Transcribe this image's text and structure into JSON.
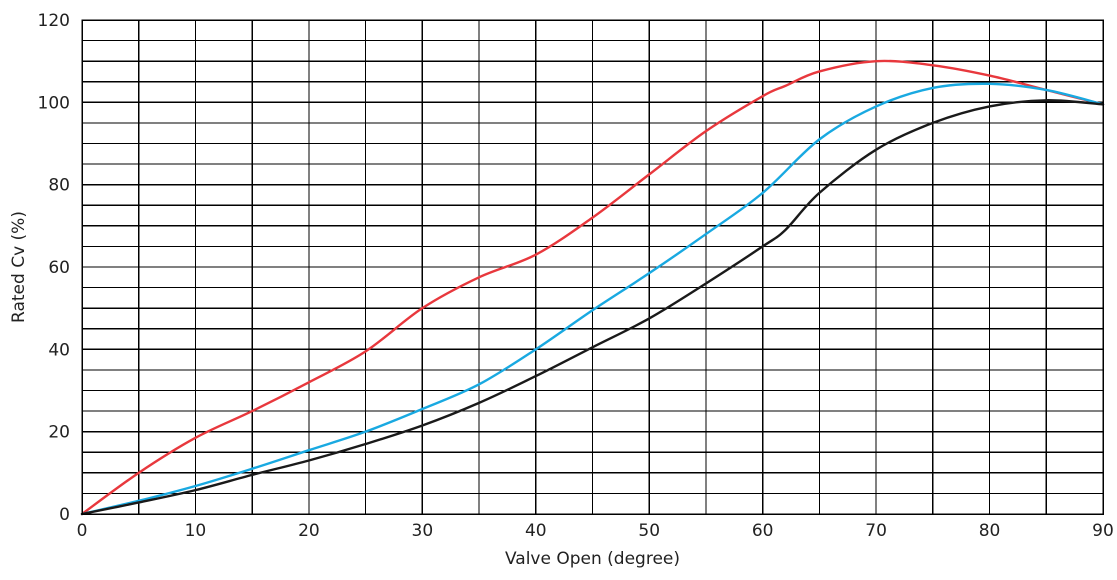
{
  "chart_data": {
    "type": "line",
    "title": "",
    "xlabel": "Valve Open (degree)",
    "ylabel": "Rated Cv (%)",
    "xlim": [
      0,
      90
    ],
    "ylim": [
      0,
      120
    ],
    "x_ticks": [
      0,
      10,
      20,
      30,
      40,
      50,
      60,
      70,
      80,
      90
    ],
    "y_ticks": [
      0,
      20,
      40,
      60,
      80,
      100,
      120
    ],
    "x_grid_step": 5,
    "y_grid_step": 5,
    "grid": true,
    "legend": "none",
    "series": [
      {
        "color": "#e8383d",
        "x": [
          0,
          5,
          10,
          15,
          20,
          25,
          30,
          35,
          40,
          45,
          50,
          55,
          60,
          62,
          65,
          70,
          75,
          80,
          85,
          90
        ],
        "y": [
          0,
          10,
          18.5,
          25,
          32,
          39.5,
          50,
          57.5,
          63,
          72,
          82.5,
          93,
          101.5,
          104,
          107.5,
          110,
          109,
          106.5,
          103,
          99.5
        ]
      },
      {
        "color": "#19a9e1",
        "x": [
          0,
          5,
          10,
          15,
          20,
          25,
          30,
          35,
          40,
          45,
          50,
          55,
          60,
          65,
          70,
          75,
          80,
          85,
          90
        ],
        "y": [
          0,
          3.2,
          6.8,
          11,
          15.5,
          20,
          25.5,
          31.5,
          40,
          49.5,
          58.5,
          68,
          78,
          91,
          99,
          103.5,
          104.5,
          103,
          99.5
        ]
      },
      {
        "color": "#1a1a1a",
        "x": [
          0,
          5,
          10,
          15,
          20,
          25,
          30,
          35,
          40,
          45,
          50,
          55,
          60,
          62,
          65,
          70,
          75,
          80,
          85,
          90
        ],
        "y": [
          0,
          2.8,
          5.8,
          9.5,
          13,
          17,
          21.5,
          27,
          33.5,
          40.5,
          47.5,
          56,
          65,
          69,
          78,
          88.5,
          95,
          99,
          100.5,
          99.5
        ]
      }
    ]
  }
}
